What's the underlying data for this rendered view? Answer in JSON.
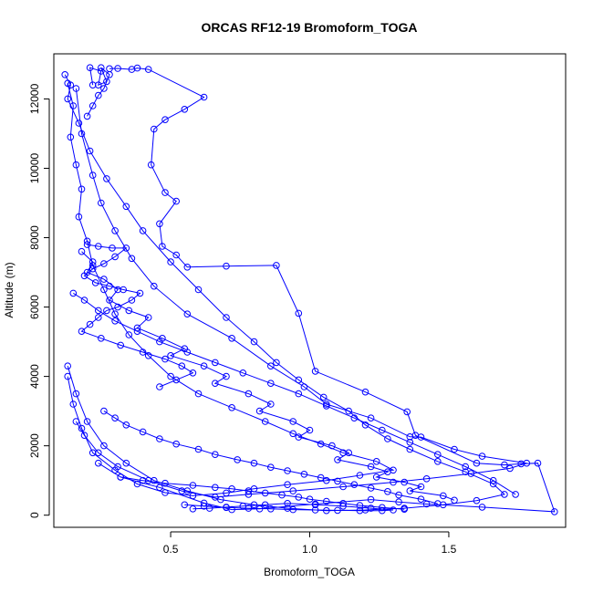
{
  "chart_data": {
    "type": "scatter",
    "title": "ORCAS RF12-19 Bromoform_TOGA",
    "xlabel": "Bromoform_TOGA",
    "ylabel": "Altitude (m)",
    "xlim": [
      0.08,
      1.92
    ],
    "ylim": [
      -350,
      13300
    ],
    "xticks": [
      0.5,
      1.0,
      1.5
    ],
    "xtick_labels": [
      "0.5",
      "1.0",
      "1.5"
    ],
    "yticks": [
      0,
      2000,
      4000,
      6000,
      8000,
      10000,
      12000
    ],
    "ytick_labels": [
      "0",
      "2000",
      "4000",
      "6000",
      "8000",
      "10000",
      "12000"
    ],
    "grid": false,
    "style": "points connected by lines, open circles",
    "color": "#0000ff",
    "series": [
      {
        "x": [
          0.28,
          0.31,
          0.36,
          0.38,
          0.42,
          0.62,
          0.55,
          0.48,
          0.44,
          0.43,
          0.48,
          0.52,
          0.46,
          0.47,
          0.52,
          0.56,
          0.7,
          0.88,
          0.96,
          1.02,
          1.2,
          1.35,
          1.38,
          1.6,
          1.7,
          1.76,
          1.82,
          1.88,
          1.62,
          1.42,
          1.32,
          1.22,
          1.02,
          0.82,
          0.72,
          0.62,
          0.46,
          0.32,
          0.24
        ],
        "y": [
          12870,
          12880,
          12850,
          12890,
          12850,
          12050,
          11700,
          11400,
          11130,
          10100,
          9300,
          9050,
          8400,
          7750,
          7500,
          7150,
          7180,
          7200,
          5820,
          4150,
          3550,
          2980,
          2300,
          1500,
          1450,
          1480,
          1500,
          100,
          230,
          320,
          380,
          450,
          320,
          180,
          160,
          350,
          800,
          1100,
          1500
        ]
      },
      {
        "x": [
          0.16,
          0.18,
          0.22,
          0.25,
          0.3,
          0.36,
          0.44,
          0.56,
          0.72,
          0.86,
          0.98,
          1.06,
          1.22,
          1.36,
          1.4,
          1.52,
          1.62,
          1.78,
          1.72,
          1.58,
          1.42,
          1.3,
          1.12,
          0.94,
          0.78,
          0.66,
          0.54,
          0.42,
          0.31,
          0.24,
          0.19,
          0.16
        ],
        "y": [
          12300,
          11000,
          9800,
          9000,
          8200,
          7400,
          6600,
          5800,
          5100,
          4300,
          3700,
          3200,
          2800,
          2260,
          2250,
          1900,
          1700,
          1500,
          1350,
          1200,
          1050,
          950,
          820,
          700,
          600,
          520,
          700,
          1000,
          1400,
          1800,
          2300,
          2700
        ]
      },
      {
        "x": [
          0.13,
          0.15,
          0.14,
          0.16,
          0.18,
          0.17,
          0.2,
          0.22,
          0.26,
          0.3,
          0.35,
          0.42,
          0.5,
          0.6,
          0.72,
          0.84,
          0.94,
          1.04,
          1.12,
          1.24,
          1.3,
          1.18,
          1.06,
          0.92,
          0.8,
          0.7,
          0.58,
          0.48,
          0.38,
          0.3,
          0.22,
          0.18,
          0.15,
          0.13
        ],
        "y": [
          12450,
          11800,
          10900,
          10100,
          9400,
          8600,
          7900,
          7200,
          6500,
          5800,
          5200,
          4600,
          4000,
          3500,
          3100,
          2700,
          2350,
          2050,
          1800,
          1550,
          1300,
          1150,
          1000,
          880,
          760,
          640,
          560,
          650,
          900,
          1300,
          1800,
          2500,
          3200,
          4000
        ]
      },
      {
        "x": [
          0.12,
          0.14,
          0.13,
          0.17,
          0.21,
          0.27,
          0.34,
          0.4,
          0.5,
          0.6,
          0.7,
          0.8,
          0.88,
          0.96,
          1.05,
          1.14,
          1.2,
          1.28,
          1.36,
          1.46,
          1.56,
          1.66,
          1.7,
          1.6,
          1.48,
          1.34,
          1.2,
          1.06,
          0.92,
          0.8,
          0.68,
          0.56,
          0.44,
          0.34,
          0.26,
          0.2,
          0.16,
          0.13
        ],
        "y": [
          12700,
          12400,
          12000,
          11300,
          10500,
          9700,
          8900,
          8200,
          7300,
          6500,
          5700,
          5000,
          4400,
          3900,
          3400,
          3000,
          2600,
          2200,
          1900,
          1550,
          1250,
          900,
          600,
          420,
          300,
          200,
          150,
          130,
          200,
          300,
          450,
          700,
          1000,
          1500,
          2000,
          2700,
          3500,
          4300
        ]
      },
      {
        "x": [
          0.18,
          0.22,
          0.2,
          0.26,
          0.31,
          0.28,
          0.35,
          0.42,
          0.38,
          0.47,
          0.55,
          0.5,
          0.62,
          0.7,
          0.66,
          0.78,
          0.86,
          0.82,
          0.94,
          1.0,
          0.96,
          1.08,
          1.14,
          1.1,
          1.22,
          1.28,
          1.24,
          1.34,
          1.4,
          1.36,
          1.48,
          1.52
        ],
        "y": [
          7600,
          7300,
          7000,
          6800,
          6500,
          6200,
          5900,
          5700,
          5400,
          5100,
          4800,
          4600,
          4300,
          4000,
          3800,
          3500,
          3200,
          3000,
          2700,
          2450,
          2250,
          2000,
          1800,
          1600,
          1400,
          1250,
          1100,
          950,
          820,
          700,
          560,
          430
        ]
      },
      {
        "x": [
          0.2,
          0.24,
          0.29,
          0.34,
          0.3,
          0.26,
          0.22,
          0.19,
          0.23,
          0.28,
          0.33,
          0.39,
          0.36,
          0.31,
          0.27,
          0.24,
          0.21,
          0.18,
          0.25,
          0.32,
          0.4,
          0.48,
          0.54,
          0.58,
          0.52,
          0.46
        ],
        "y": [
          7800,
          7750,
          7700,
          7700,
          7450,
          7250,
          7100,
          6900,
          6700,
          6600,
          6500,
          6400,
          6200,
          6000,
          5900,
          5700,
          5500,
          5300,
          5100,
          4900,
          4700,
          4500,
          4300,
          4100,
          3900,
          3700
        ]
      },
      {
        "x": [
          0.15,
          0.19,
          0.24,
          0.3,
          0.38,
          0.46,
          0.56,
          0.66,
          0.76,
          0.86,
          0.96,
          1.06,
          1.16,
          1.26,
          1.36,
          1.46,
          1.56,
          1.66,
          1.74
        ],
        "y": [
          6400,
          6200,
          5900,
          5600,
          5300,
          5000,
          4700,
          4400,
          4100,
          3800,
          3500,
          3150,
          2800,
          2450,
          2100,
          1750,
          1400,
          1000,
          600
        ]
      },
      {
        "x": [
          0.22,
          0.21,
          0.25,
          0.24,
          0.27,
          0.25,
          0.28,
          0.26,
          0.24,
          0.22,
          0.2
        ],
        "y": [
          12400,
          12900,
          12800,
          12400,
          12500,
          12900,
          12700,
          12300,
          12100,
          11800,
          11500
        ]
      },
      {
        "x": [
          0.26,
          0.3,
          0.34,
          0.4,
          0.46,
          0.52,
          0.6,
          0.66,
          0.74,
          0.8,
          0.86,
          0.92,
          0.98,
          1.04,
          1.1,
          1.16,
          1.22,
          1.28,
          1.32,
          1.4,
          1.46
        ],
        "y": [
          3000,
          2800,
          2600,
          2400,
          2200,
          2050,
          1900,
          1750,
          1600,
          1500,
          1380,
          1280,
          1180,
          1080,
          980,
          880,
          780,
          680,
          580,
          460,
          330
        ]
      },
      {
        "x": [
          0.55,
          0.62,
          0.7,
          0.78,
          0.86,
          0.94,
          1.02,
          1.1,
          1.18,
          1.26,
          1.3,
          1.22,
          1.12,
          1.02,
          0.92,
          0.84,
          0.76,
          0.7,
          0.64,
          0.58
        ],
        "y": [
          300,
          260,
          220,
          200,
          180,
          160,
          150,
          140,
          130,
          130,
          150,
          200,
          260,
          300,
          340,
          300,
          260,
          230,
          200,
          180
        ]
      },
      {
        "x": [
          0.32,
          0.4,
          0.48,
          0.58,
          0.66,
          0.72,
          0.78,
          0.84,
          0.9,
          0.96,
          1.0,
          1.06,
          1.12,
          1.18,
          1.26,
          1.34
        ],
        "y": [
          1100,
          1000,
          920,
          860,
          800,
          760,
          700,
          640,
          580,
          520,
          460,
          400,
          340,
          280,
          220,
          170
        ]
      }
    ]
  }
}
